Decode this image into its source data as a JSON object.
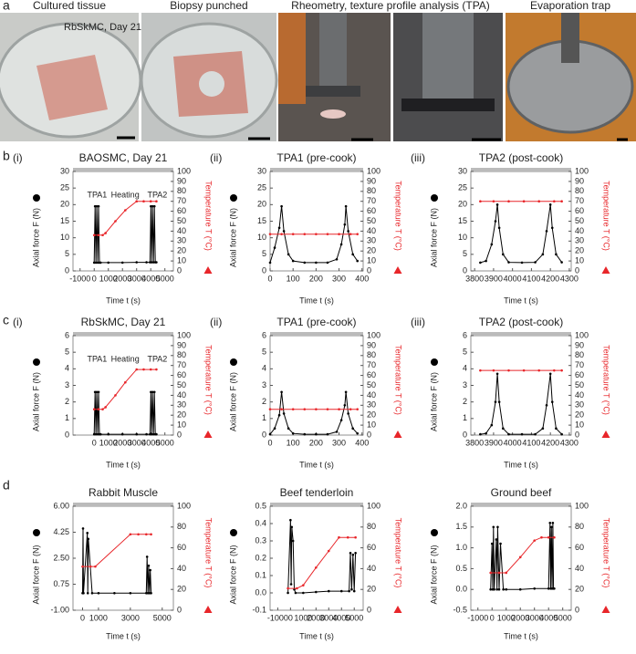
{
  "photos": {
    "captions": [
      "Cultured tissue",
      "Biopsy punched",
      "Rheometry, texture profile analysis (TPA)",
      "Evaporation trap"
    ],
    "inset": "RbSkMC, Day 21"
  },
  "panel_letters": [
    "a",
    "b",
    "c",
    "d"
  ],
  "chart_data": [
    {
      "type": "line",
      "panel": "(i)",
      "title": "BAOSMC, Day 21",
      "annotations": [
        "TPA1",
        "Heating",
        "TPA2"
      ],
      "y_label": "Axial force  F  (N)",
      "y2_label": "Temperature  T  (°C)",
      "x_label": "Time  t  (s)",
      "xlim": [
        -1500,
        5600
      ],
      "xticks": [
        -1000,
        0,
        1000,
        2000,
        3000,
        4000,
        5000
      ],
      "ylim": [
        0,
        30
      ],
      "yticks": [
        0,
        5,
        10,
        15,
        20,
        25,
        30
      ],
      "y2lim": [
        0,
        100
      ],
      "y2ticks": [
        0,
        10,
        20,
        30,
        40,
        50,
        60,
        70,
        80,
        90,
        100
      ],
      "series": [
        {
          "color": "#000000",
          "x": [
            0,
            60,
            120,
            180,
            250,
            310,
            370,
            450,
            1000,
            2000,
            3000,
            3700,
            3950,
            4010,
            4070,
            4130,
            4200,
            4260,
            4320,
            4400
          ],
          "values": [
            2.5,
            19.5,
            2.5,
            19.5,
            2.5,
            19.5,
            2.5,
            2.5,
            2.5,
            2.5,
            2.6,
            2.6,
            2.6,
            19.5,
            2.6,
            19.5,
            2.6,
            19.5,
            2.6,
            2.6
          ]
        },
        {
          "color": "#e8262a",
          "axis": "y2",
          "x": [
            0,
            300,
            600,
            800,
            1500,
            2200,
            3000,
            3500,
            4000,
            4400
          ],
          "values": [
            36,
            36,
            36,
            38,
            50,
            61,
            70,
            70,
            70,
            70
          ]
        }
      ]
    },
    {
      "type": "line",
      "panel": "(ii)",
      "title": "TPA1 (pre-cook)",
      "y_label": "Axial force  F  (N)",
      "y2_label": "Temperature  T  (°C)",
      "x_label": "Time  t  (s)",
      "xlim": [
        0,
        405
      ],
      "xticks": [
        0,
        100,
        200,
        300,
        400
      ],
      "ylim": [
        0,
        30
      ],
      "yticks": [
        0,
        5,
        10,
        15,
        20,
        25,
        30
      ],
      "y2lim": [
        0,
        100
      ],
      "y2ticks": [
        0,
        10,
        20,
        30,
        40,
        50,
        60,
        70,
        80,
        90,
        100
      ],
      "series": [
        {
          "color": "#000000",
          "x": [
            0,
            20,
            40,
            50,
            60,
            80,
            100,
            150,
            200,
            250,
            290,
            310,
            325,
            330,
            340,
            360,
            380
          ],
          "values": [
            2.5,
            7,
            13,
            19.5,
            12,
            5,
            3,
            2.5,
            2.5,
            2.5,
            3.5,
            8,
            14,
            19.5,
            12,
            5,
            3
          ]
        },
        {
          "color": "#e8262a",
          "axis": "y2",
          "x": [
            0,
            50,
            100,
            150,
            200,
            250,
            300,
            350,
            380
          ],
          "values": [
            37,
            37,
            37,
            37,
            37,
            37,
            37,
            37,
            37
          ]
        }
      ]
    },
    {
      "type": "line",
      "panel": "(iii)",
      "title": "TPA2 (post-cook)",
      "y_label": "Axial force  F  (N)",
      "y2_label": "Temperature  T  (°C)",
      "x_label": "Time  t  (s)",
      "xlim": [
        3780,
        4310
      ],
      "xticks": [
        3800,
        3900,
        4000,
        4100,
        4200,
        4300
      ],
      "ylim": [
        0,
        30
      ],
      "yticks": [
        0,
        5,
        10,
        15,
        20,
        25,
        30
      ],
      "y2lim": [
        0,
        100
      ],
      "y2ticks": [
        0,
        10,
        20,
        30,
        40,
        50,
        60,
        70,
        80,
        90,
        100
      ],
      "series": [
        {
          "color": "#000000",
          "x": [
            3830,
            3860,
            3890,
            3910,
            3920,
            3930,
            3950,
            3980,
            4050,
            4120,
            4160,
            4180,
            4200,
            4210,
            4230,
            4260
          ],
          "values": [
            2.5,
            3,
            8,
            15,
            20,
            13,
            5,
            2.6,
            2.5,
            2.6,
            5,
            12,
            20,
            13,
            5,
            2.6
          ]
        },
        {
          "color": "#e8262a",
          "axis": "y2",
          "x": [
            3830,
            3900,
            3980,
            4060,
            4140,
            4220,
            4260
          ],
          "values": [
            70,
            70,
            70,
            70,
            70,
            70,
            70
          ]
        }
      ]
    },
    {
      "type": "line",
      "panel": "(i)",
      "title": "RbSkMC, Day 21",
      "annotations": [
        "TPA1",
        "Heating",
        "TPA2"
      ],
      "y_label": "Axial force  F  (N)",
      "y2_label": "Temperature  T  (°C)",
      "x_label": "Time  t  (s)",
      "xlim": [
        -1500,
        5600
      ],
      "xticks": [
        0,
        1000,
        2000,
        3000,
        4000,
        5000
      ],
      "ylim": [
        0,
        6
      ],
      "yticks": [
        0,
        1,
        2,
        3,
        4,
        5,
        6
      ],
      "y2lim": [
        0,
        100
      ],
      "y2ticks": [
        0,
        10,
        20,
        30,
        40,
        50,
        60,
        70,
        80,
        90,
        100
      ],
      "series": [
        {
          "color": "#000000",
          "x": [
            0,
            60,
            120,
            180,
            250,
            310,
            370,
            450,
            1000,
            2000,
            3000,
            3700,
            3950,
            4010,
            4070,
            4130,
            4200,
            4260,
            4320,
            4400
          ],
          "values": [
            0.05,
            2.6,
            0.05,
            2.6,
            0.05,
            2.6,
            0.05,
            0.05,
            0.05,
            0.05,
            0.05,
            0.05,
            0.05,
            2.6,
            0.05,
            2.6,
            0.05,
            2.6,
            0.05,
            0.05
          ]
        },
        {
          "color": "#e8262a",
          "axis": "y2",
          "x": [
            0,
            300,
            600,
            800,
            1500,
            2200,
            3000,
            3500,
            4000,
            4400
          ],
          "values": [
            26,
            26,
            26,
            28,
            40,
            53,
            66,
            66,
            66,
            66
          ]
        }
      ]
    },
    {
      "type": "line",
      "panel": "(ii)",
      "title": "TPA1 (pre-cook)",
      "y_label": "Axial force  F  (N)",
      "y2_label": "Temperature  T  (°C)",
      "x_label": "Time  t  (s)",
      "xlim": [
        0,
        405
      ],
      "xticks": [
        0,
        100,
        200,
        300,
        400
      ],
      "ylim": [
        0,
        6
      ],
      "yticks": [
        0,
        1,
        2,
        3,
        4,
        5,
        6
      ],
      "y2lim": [
        0,
        100
      ],
      "y2ticks": [
        0,
        10,
        20,
        30,
        40,
        50,
        60,
        70,
        80,
        90,
        100
      ],
      "series": [
        {
          "color": "#000000",
          "x": [
            0,
            20,
            40,
            50,
            60,
            80,
            100,
            150,
            200,
            250,
            290,
            310,
            325,
            330,
            340,
            360,
            380
          ],
          "values": [
            0.05,
            0.4,
            1.2,
            2.6,
            1.3,
            0.4,
            0.1,
            0.05,
            0.05,
            0.05,
            0.2,
            0.9,
            1.8,
            2.6,
            1.3,
            0.4,
            0.1
          ]
        },
        {
          "color": "#e8262a",
          "axis": "y2",
          "x": [
            0,
            50,
            100,
            150,
            200,
            250,
            300,
            350,
            380
          ],
          "values": [
            26,
            26,
            26,
            26,
            26,
            26,
            26,
            26,
            26
          ]
        }
      ]
    },
    {
      "type": "line",
      "panel": "(iii)",
      "title": "TPA2 (post-cook)",
      "y_label": "Axial force  F  (N)",
      "y2_label": "Temperature  T  (°C)",
      "x_label": "Time  t  (s)",
      "xlim": [
        3780,
        4310
      ],
      "xticks": [
        3800,
        3900,
        4000,
        4100,
        4200,
        4300
      ],
      "ylim": [
        0,
        6
      ],
      "yticks": [
        0,
        1,
        2,
        3,
        4,
        5,
        6
      ],
      "y2lim": [
        0,
        100
      ],
      "y2ticks": [
        0,
        10,
        20,
        30,
        40,
        50,
        60,
        70,
        80,
        90,
        100
      ],
      "series": [
        {
          "color": "#000000",
          "x": [
            3830,
            3860,
            3890,
            3910,
            3920,
            3930,
            3950,
            3980,
            4050,
            4120,
            4160,
            4180,
            4200,
            4210,
            4230,
            4260
          ],
          "values": [
            0.05,
            0.1,
            0.6,
            2,
            3.7,
            2,
            0.4,
            0.05,
            0.05,
            0.05,
            0.4,
            1.8,
            3.7,
            2,
            0.4,
            0.05
          ]
        },
        {
          "color": "#e8262a",
          "axis": "y2",
          "x": [
            3830,
            3900,
            3980,
            4060,
            4140,
            4220,
            4260
          ],
          "values": [
            65,
            65,
            65,
            65,
            65,
            65,
            65
          ]
        }
      ]
    },
    {
      "type": "line",
      "title": "Rabbit Muscle",
      "y_label": "Axial force  F  (N)",
      "y2_label": "Temperature  T  (°C)",
      "x_label": "Time  t  (s)",
      "xlim": [
        -600,
        5700
      ],
      "xticks": [
        0,
        1000,
        3000,
        5000
      ],
      "ylim": [
        -1,
        6
      ],
      "yticks": [
        {
          "value": -1,
          "label": "-1.00"
        },
        {
          "value": 0.75,
          "label": "0.75"
        },
        {
          "value": 2.5,
          "label": "2.50"
        },
        {
          "value": 4.25,
          "label": "4.25"
        },
        {
          "value": 6,
          "label": "6.00"
        }
      ],
      "y2lim": [
        0,
        100
      ],
      "y2ticks": [
        0,
        20,
        40,
        60,
        80,
        100
      ],
      "series": [
        {
          "color": "#000000",
          "x": [
            0,
            30,
            60,
            300,
            330,
            360,
            600,
            1000,
            2000,
            3000,
            4000,
            4050,
            4100,
            4150,
            4200,
            4250,
            4300
          ],
          "values": [
            0.15,
            4.5,
            0.15,
            4.2,
            0.15,
            3.8,
            0.15,
            0.15,
            0.15,
            0.15,
            0.15,
            2.6,
            0.15,
            2,
            0.15,
            1.7,
            0.15
          ]
        },
        {
          "color": "#e8262a",
          "axis": "y2",
          "x": [
            0,
            500,
            800,
            3000,
            3500,
            4000,
            4300
          ],
          "values": [
            42,
            42,
            42,
            73,
            73,
            73,
            73
          ]
        }
      ]
    },
    {
      "type": "line",
      "title": "Beef tenderloin",
      "y_label": "Axial force  F  (N)",
      "y2_label": "Temperature  T  (°C)",
      "x_label": "Time  t  (s)",
      "xlim": [
        -1600,
        5700
      ],
      "xticks": [
        -1000,
        0,
        1000,
        2000,
        3000,
        4000,
        5000
      ],
      "ylim": [
        -0.1,
        0.5
      ],
      "yticks": [
        -0.1,
        {
          "value": 0,
          "label": "0.0"
        },
        0.1,
        0.2,
        0.3,
        0.4,
        0.5
      ],
      "y2lim": [
        0,
        100
      ],
      "y2ticks": [
        0,
        20,
        40,
        60,
        80,
        100
      ],
      "series": [
        {
          "color": "#000000",
          "x": [
            -200,
            0,
            50,
            100,
            200,
            300,
            400,
            1000,
            2000,
            3000,
            4000,
            4600,
            4700,
            4800,
            4900,
            5000,
            5100
          ],
          "values": [
            0,
            0.42,
            0.05,
            0.38,
            0.3,
            0.02,
            0,
            0,
            0.005,
            0.01,
            0.01,
            0.01,
            0.23,
            0.02,
            0.22,
            0.01,
            0.23
          ]
        },
        {
          "color": "#e8262a",
          "axis": "y2",
          "x": [
            -200,
            500,
            1000,
            2000,
            3000,
            3800,
            4500,
            5100
          ],
          "values": [
            21,
            21,
            24,
            41,
            57,
            70,
            70,
            70
          ]
        }
      ]
    },
    {
      "type": "line",
      "title": "Ground beef",
      "y_label": "Axial force  F  (N)",
      "y2_label": "Temperature  T  (°C)",
      "x_label": "Time  t  (s)",
      "xlim": [
        -1500,
        5600
      ],
      "xticks": [
        -1000,
        0,
        1000,
        2000,
        3000,
        4000,
        5000
      ],
      "ylim": [
        -0.5,
        2
      ],
      "yticks": [
        -0.5,
        {
          "value": 0,
          "label": "0.0"
        },
        0.5,
        {
          "value": 1,
          "label": "1.0"
        },
        1.5,
        {
          "value": 2,
          "label": "2.0"
        }
      ],
      "y2lim": [
        0,
        100
      ],
      "y2ticks": [
        0,
        20,
        40,
        60,
        80,
        100
      ],
      "series": [
        {
          "color": "#000000",
          "x": [
            -100,
            0,
            50,
            100,
            150,
            300,
            350,
            400,
            500,
            600,
            800,
            1000,
            2000,
            3000,
            4000,
            4100,
            4150,
            4200,
            4250,
            4300,
            4350,
            4400
          ],
          "values": [
            0,
            1.1,
            0,
            1.5,
            0,
            1.2,
            0,
            1.5,
            0,
            1.1,
            0,
            0,
            0,
            0.02,
            0.02,
            1.6,
            0.02,
            1.5,
            0.02,
            1.6,
            0.02,
            0.02
          ]
        },
        {
          "color": "#e8262a",
          "axis": "y2",
          "x": [
            -100,
            500,
            1000,
            2000,
            3000,
            3500,
            4000,
            4400
          ],
          "values": [
            36,
            36,
            36,
            51,
            67,
            70,
            70,
            70
          ]
        }
      ]
    }
  ]
}
